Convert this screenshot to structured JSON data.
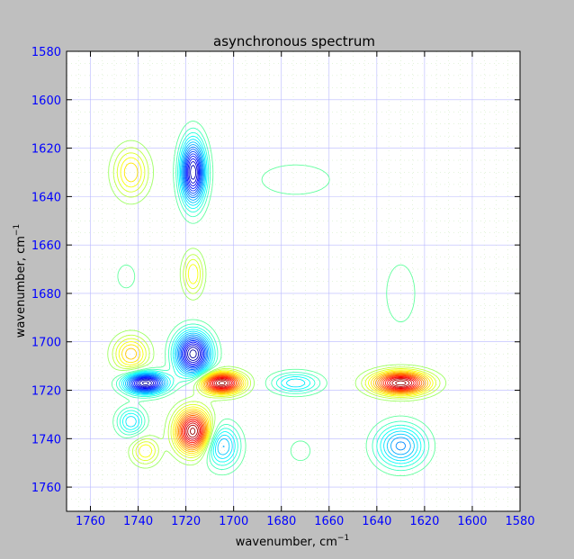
{
  "chart_data": {
    "type": "contour",
    "title": "asynchronous spectrum",
    "xlabel": "wavenumber, cm",
    "ylabel": "wavenumber, cm",
    "label_exponent": "−1",
    "xlim": [
      1770,
      1580
    ],
    "ylim": [
      1770,
      1580
    ],
    "x_ticks": [
      1760,
      1740,
      1720,
      1700,
      1680,
      1660,
      1640,
      1620,
      1600,
      1580
    ],
    "y_ticks": [
      1580,
      1600,
      1620,
      1640,
      1660,
      1680,
      1700,
      1720,
      1740,
      1760
    ],
    "grid": true,
    "colormap": "jet",
    "colors": {
      "tick_labels": "#0000ff",
      "grid": "#b8b8ff",
      "background": "#bfbfbf",
      "plot_bg": "#ffffff"
    },
    "peaks": [
      {
        "x": 1717,
        "y": 1630,
        "sign": "negative",
        "amplitude": 0.95,
        "sx": 3.5,
        "sy": 9
      },
      {
        "x": 1743,
        "y": 1630,
        "sign": "positive",
        "amplitude": 0.35,
        "sx": 5,
        "sy": 7
      },
      {
        "x": 1717,
        "y": 1672,
        "sign": "positive",
        "amplitude": 0.3,
        "sx": 3,
        "sy": 6
      },
      {
        "x": 1745,
        "y": 1673,
        "sign": "negative",
        "amplitude": 0.12,
        "sx": 3,
        "sy": 4
      },
      {
        "x": 1717,
        "y": 1705,
        "sign": "negative",
        "amplitude": 1.0,
        "sx": 5,
        "sy": 6
      },
      {
        "x": 1737,
        "y": 1717,
        "sign": "negative",
        "amplitude": 1.0,
        "sx": 6,
        "sy": 3
      },
      {
        "x": 1705,
        "y": 1717,
        "sign": "positive",
        "amplitude": 1.0,
        "sx": 6,
        "sy": 3
      },
      {
        "x": 1717,
        "y": 1737,
        "sign": "positive",
        "amplitude": 1.0,
        "sx": 5,
        "sy": 6
      },
      {
        "x": 1743,
        "y": 1705,
        "sign": "positive",
        "amplitude": 0.4,
        "sx": 5,
        "sy": 5
      },
      {
        "x": 1743,
        "y": 1733,
        "sign": "negative",
        "amplitude": 0.35,
        "sx": 4,
        "sy": 4
      },
      {
        "x": 1737,
        "y": 1745,
        "sign": "positive",
        "amplitude": 0.3,
        "sx": 4,
        "sy": 4
      },
      {
        "x": 1705,
        "y": 1743,
        "sign": "negative",
        "amplitude": 0.45,
        "sx": 5,
        "sy": 6
      },
      {
        "x": 1674,
        "y": 1717,
        "sign": "negative",
        "amplitude": 0.35,
        "sx": 7,
        "sy": 3
      },
      {
        "x": 1630,
        "y": 1717,
        "sign": "positive",
        "amplitude": 1.0,
        "sx": 8,
        "sy": 3.2
      },
      {
        "x": 1630,
        "y": 1743,
        "sign": "negative",
        "amplitude": 0.5,
        "sx": 7,
        "sy": 6
      },
      {
        "x": 1630,
        "y": 1680,
        "sign": "negative",
        "amplitude": 0.12,
        "sx": 5,
        "sy": 10
      },
      {
        "x": 1674,
        "y": 1633,
        "sign": "negative",
        "amplitude": 0.1,
        "sx": 14,
        "sy": 6
      },
      {
        "x": 1672,
        "y": 1745,
        "sign": "negative",
        "amplitude": 0.1,
        "sx": 4,
        "sy": 4
      }
    ]
  }
}
